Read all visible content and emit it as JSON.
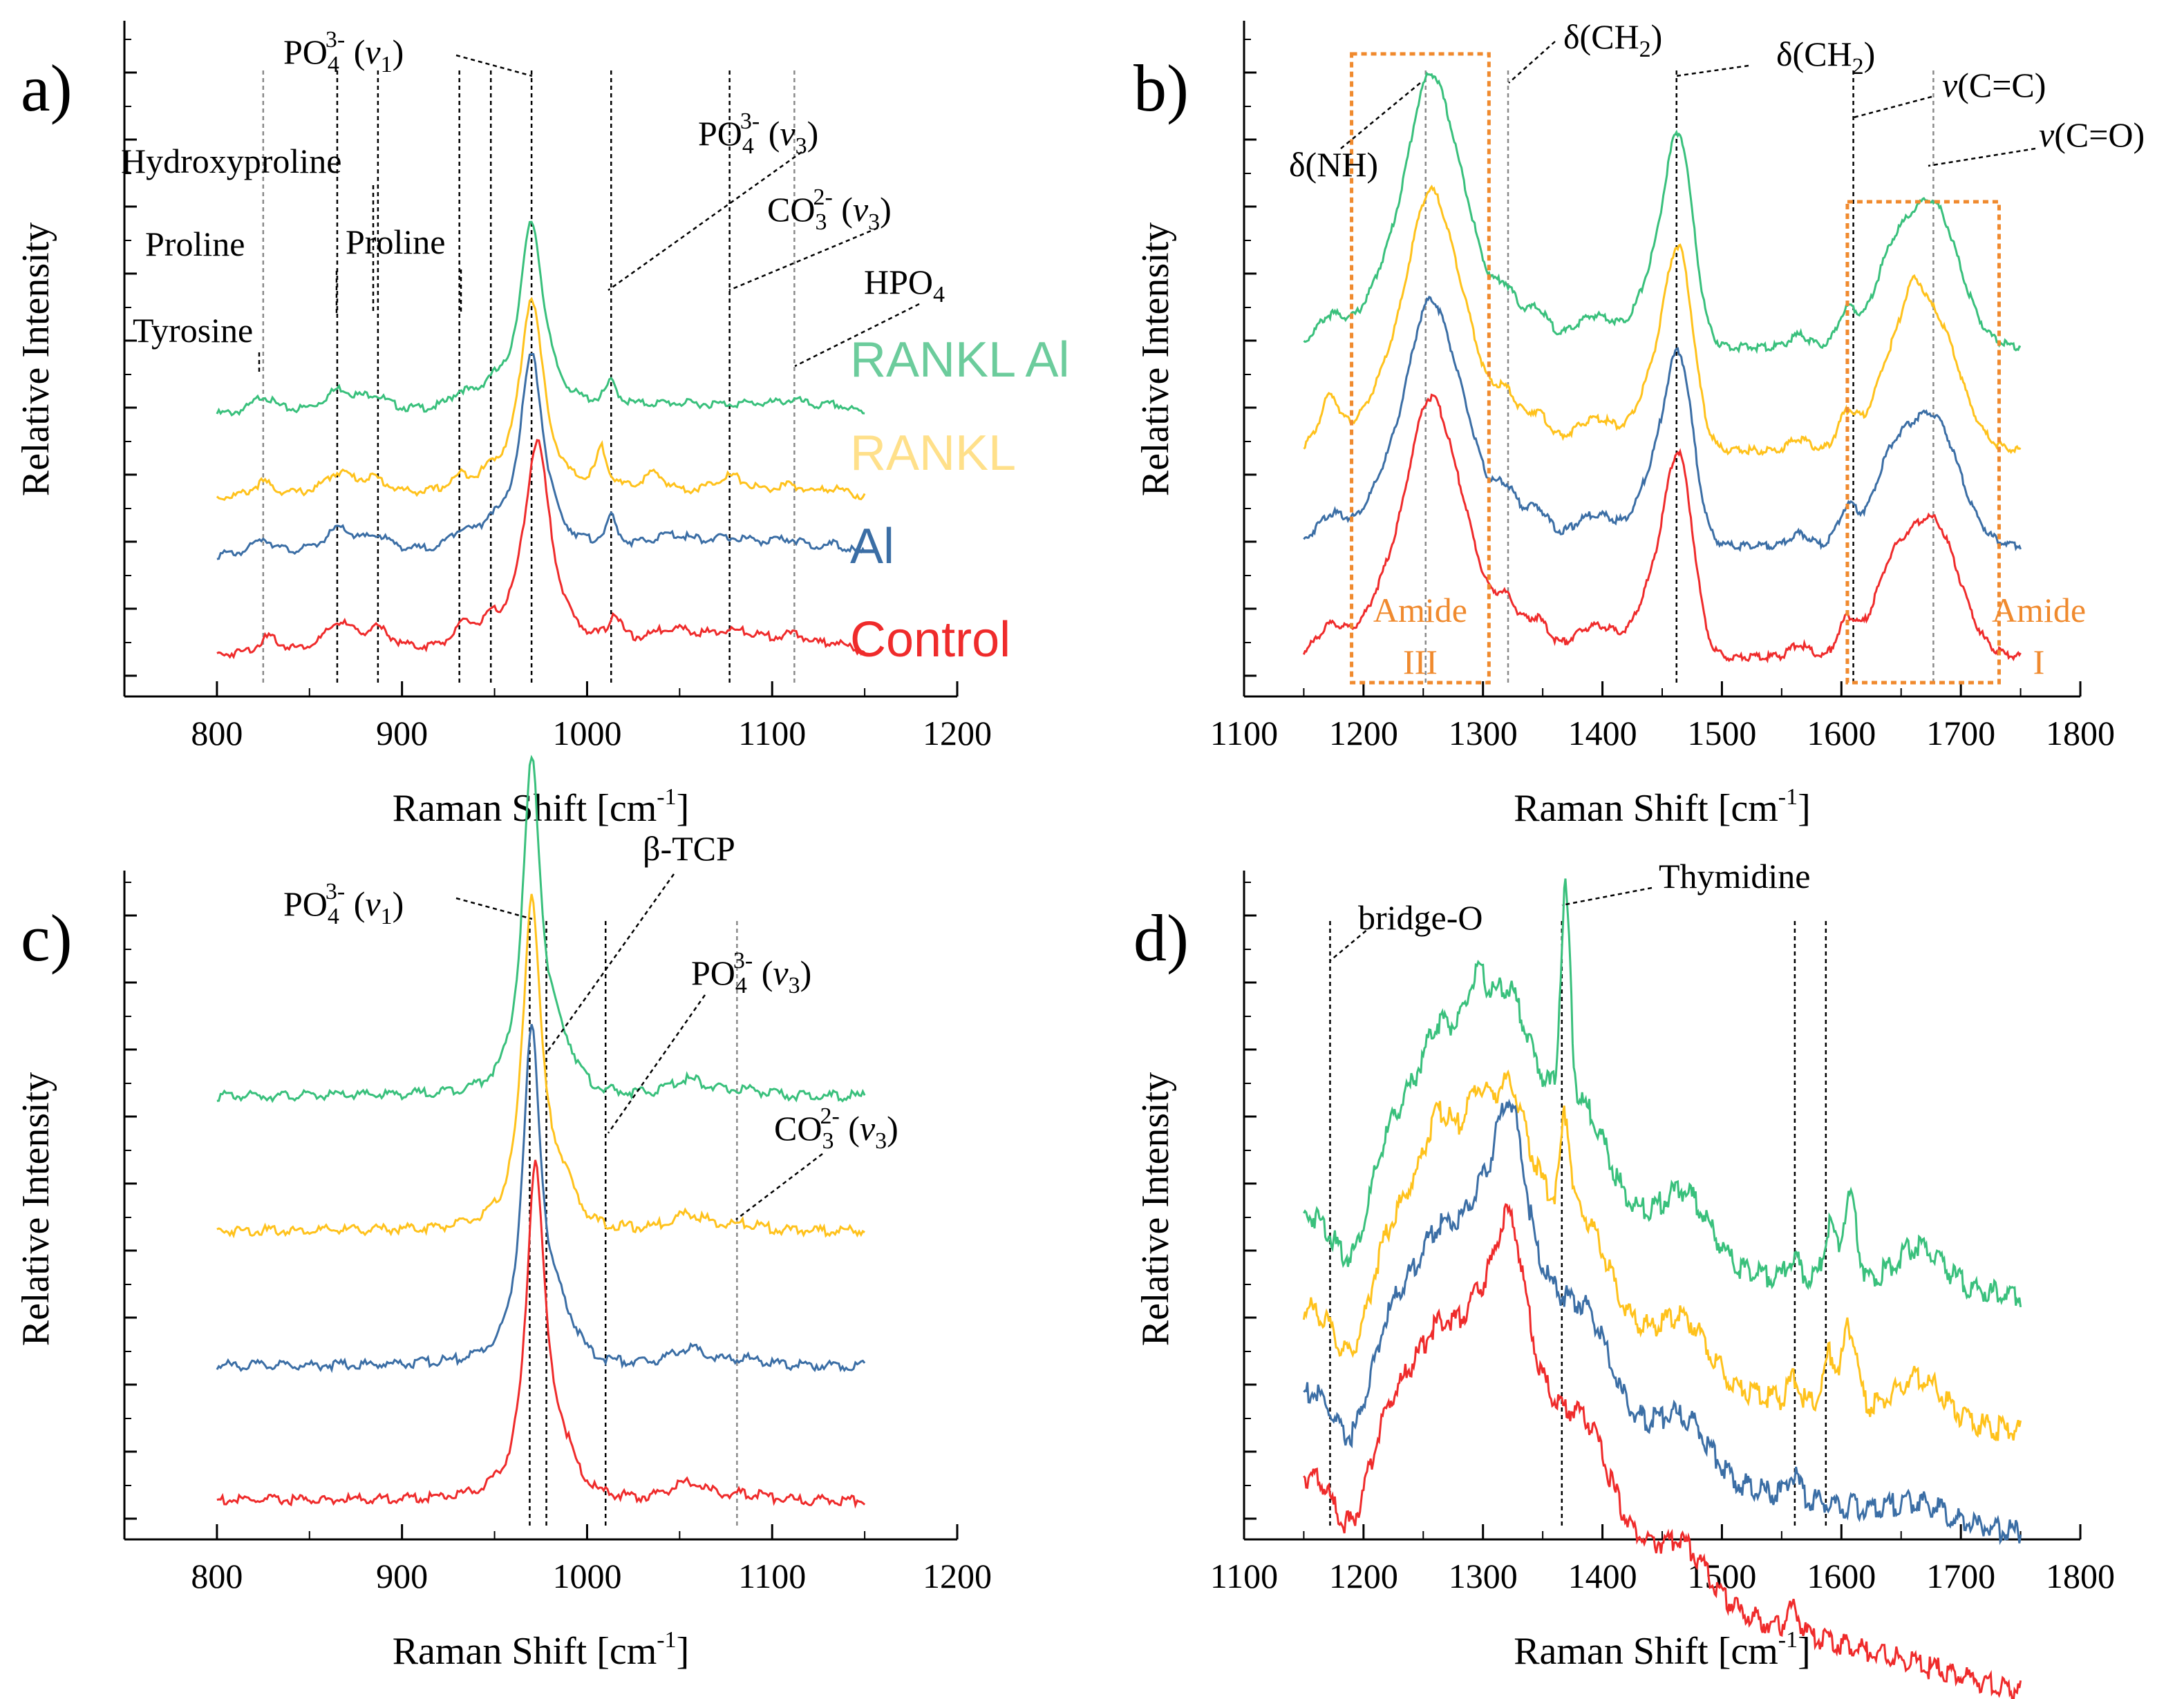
{
  "chart_data": [
    {
      "panel": "a)",
      "type": "line",
      "xlabel": "Raman Shift [cm⁻¹]",
      "ylabel": "Relative Intensity",
      "xlim": [
        750,
        1200
      ],
      "xticks": [
        "800",
        "900",
        "1000",
        "1100",
        "1200"
      ],
      "series": [
        {
          "name": "RANKL Al",
          "color": "#39c07c",
          "offset": 2.9,
          "peaks": [
            [
              825,
              0.22,
              7
            ],
            [
              866,
              0.28,
              10
            ],
            [
              885,
              0.18,
              9
            ],
            [
              932,
              0.18,
              7
            ],
            [
              948,
              0.2,
              6
            ],
            [
              970,
              2.3,
              8
            ],
            [
              1013,
              0.28,
              4
            ],
            [
              1045,
              0.1,
              30
            ],
            [
              1090,
              0.1,
              30
            ],
            [
              1112,
              0.1,
              10
            ],
            [
              1134,
              0.08,
              8
            ]
          ]
        },
        {
          "name": "RANKL",
          "color": "#ffc21c",
          "offset": 1.9,
          "peaks": [
            [
              825,
              0.18,
              7
            ],
            [
              866,
              0.28,
              10
            ],
            [
              885,
              0.18,
              9
            ],
            [
              932,
              0.18,
              7
            ],
            [
              948,
              0.15,
              6
            ],
            [
              970,
              2.4,
              8
            ],
            [
              1008,
              0.5,
              4
            ],
            [
              1036,
              0.25,
              8
            ],
            [
              1077,
              0.25,
              12
            ],
            [
              1110,
              0.12,
              10
            ],
            [
              1134,
              0.1,
              8
            ]
          ]
        },
        {
          "name": "Al",
          "color": "#3b6ea5",
          "offset": 1.2,
          "peaks": [
            [
              825,
              0.2,
              7
            ],
            [
              866,
              0.3,
              10
            ],
            [
              887,
              0.18,
              9
            ],
            [
              932,
              0.22,
              7
            ],
            [
              948,
              0.22,
              6
            ],
            [
              970,
              2.4,
              8
            ],
            [
              1013,
              0.35,
              4
            ],
            [
              1045,
              0.18,
              15
            ],
            [
              1080,
              0.18,
              25
            ],
            [
              1110,
              0.12,
              10
            ],
            [
              1134,
              0.1,
              8
            ]
          ]
        },
        {
          "name": "Control",
          "color": "#ef2b2b",
          "offset": 0.0,
          "peaks": [
            [
              828,
              0.2,
              7
            ],
            [
              866,
              0.35,
              10
            ],
            [
              887,
              0.25,
              9
            ],
            [
              934,
              0.25,
              7
            ],
            [
              948,
              0.18,
              6
            ],
            [
              973,
              2.55,
              9
            ],
            [
              1015,
              0.35,
              4
            ],
            [
              1045,
              0.22,
              15
            ],
            [
              1080,
              0.25,
              25
            ],
            [
              1112,
              0.15,
              10
            ],
            [
              1134,
              0.1,
              8
            ]
          ]
        }
      ],
      "legend": [
        "RANKL Al",
        "RANKL",
        "Al",
        "Control"
      ],
      "legend_colors": [
        "#6ccc9c",
        "#ffe08a",
        "#3b6ea5",
        "#ef2b2b"
      ],
      "peak_lines": [
        {
          "x": 825,
          "style": "gray"
        },
        {
          "x": 865,
          "style": "black"
        },
        {
          "x": 887,
          "style": "black"
        },
        {
          "x": 931,
          "style": "black"
        },
        {
          "x": 948,
          "style": "black"
        },
        {
          "x": 970,
          "style": "black"
        },
        {
          "x": 1013,
          "style": "black"
        },
        {
          "x": 1077,
          "style": "black"
        },
        {
          "x": 1112,
          "style": "gray"
        }
      ],
      "annotations": [
        {
          "main": "PO",
          "sub": "4",
          "sup": "3-",
          "tail": " (",
          "ital": "v",
          "sub2": "1",
          "end": ")"
        },
        {
          "main": "Hydroxyproline"
        },
        {
          "main": "Proline"
        },
        {
          "main": "Proline"
        },
        {
          "main": "Tyrosine"
        },
        {
          "main": "PO",
          "sub": "4",
          "sup": "3-",
          "tail": " (",
          "ital": "v",
          "sub2": "3",
          "end": ")"
        },
        {
          "main": "CO",
          "sub": "3",
          "sup": "2-",
          "tail": " (",
          "ital": "v",
          "sub2": "3",
          "end": ")"
        },
        {
          "main": "HPO",
          "sub": "4"
        }
      ]
    },
    {
      "panel": "b)",
      "type": "line",
      "xlabel": "Raman Shift [cm⁻¹]",
      "ylabel": "Relative Intensity",
      "xlim": [
        1100,
        1800
      ],
      "xticks": [
        "1100",
        "1200",
        "1300",
        "1400",
        "1500",
        "1600",
        "1700",
        "1800"
      ],
      "series": [
        {
          "name": "RANKL Al",
          "color": "#39c07c",
          "offset": 3.9
        },
        {
          "name": "RANKL",
          "color": "#ffc21c",
          "offset": 2.6
        },
        {
          "name": "Al",
          "color": "#3b6ea5",
          "offset": 1.4
        },
        {
          "name": "Control",
          "color": "#ef2b2b",
          "offset": 0.0
        }
      ],
      "peak_lines": [
        {
          "x": 1252,
          "style": "gray"
        },
        {
          "x": 1321,
          "style": "gray"
        },
        {
          "x": 1462,
          "style": "black"
        },
        {
          "x": 1610,
          "style": "black"
        },
        {
          "x": 1677,
          "style": "gray"
        }
      ],
      "boxes": [
        {
          "label1": "Amide",
          "label2": "III"
        },
        {
          "label1": "Amide",
          "label2": "I"
        }
      ],
      "annotations": [
        {
          "main": "δ(NH)"
        },
        {
          "main": "δ(CH",
          "sub": "2",
          "end": ")"
        },
        {
          "main": "δ(CH",
          "sub": "2",
          "end": ")"
        },
        {
          "ital": "v",
          "main": "(C=C)"
        },
        {
          "ital": "v",
          "main": "(C=O)"
        }
      ]
    },
    {
      "panel": "c)",
      "type": "line",
      "xlabel": "Raman Shift [cm⁻¹]",
      "ylabel": "Relative Intensity",
      "xlim": [
        750,
        1200
      ],
      "xticks": [
        "800",
        "900",
        "1000",
        "1100",
        "1200"
      ],
      "series": [
        {
          "name": "RANKL Al",
          "color": "#39c07c",
          "offset": 3.9
        },
        {
          "name": "RANKL",
          "color": "#ffc21c",
          "offset": 2.6
        },
        {
          "name": "Al",
          "color": "#3b6ea5",
          "offset": 1.3
        },
        {
          "name": "Control",
          "color": "#ef2b2b",
          "offset": 0.0
        }
      ],
      "peak_lines": [
        {
          "x": 969,
          "style": "black"
        },
        {
          "x": 978,
          "style": "black"
        },
        {
          "x": 1010,
          "style": "black"
        },
        {
          "x": 1081,
          "style": "gray"
        }
      ],
      "annotations": [
        {
          "main": "PO",
          "sub": "4",
          "sup": "3-",
          "tail": " (",
          "ital": "v",
          "sub2": "1",
          "end": ")"
        },
        {
          "main": "β-TCP"
        },
        {
          "main": "PO",
          "sub": "4",
          "sup": "3-",
          "tail": " (",
          "ital": "v",
          "sub2": "3",
          "end": ")"
        },
        {
          "main": "CO",
          "sub": "3",
          "sup": "2-",
          "tail": " (",
          "ital": "v",
          "sub2": "3",
          "end": ")"
        }
      ]
    },
    {
      "panel": "d)",
      "type": "line",
      "xlabel": "Raman Shift [cm⁻¹]",
      "ylabel": "Relative Intensity",
      "xlim": [
        1100,
        1800
      ],
      "xticks": [
        "1100",
        "1200",
        "1300",
        "1400",
        "1500",
        "1600",
        "1700",
        "1800"
      ],
      "series": [
        {
          "name": "RANKL Al",
          "color": "#39c07c",
          "offset": 2.5
        },
        {
          "name": "RANKL",
          "color": "#ffc21c",
          "offset": 1.6
        },
        {
          "name": "Al",
          "color": "#3b6ea5",
          "offset": 0.8
        },
        {
          "name": "Control",
          "color": "#ef2b2b",
          "offset": 0.0
        }
      ],
      "peak_lines": [
        {
          "x": 1172,
          "style": "black"
        },
        {
          "x": 1366,
          "style": "black"
        },
        {
          "x": 1561,
          "style": "black"
        },
        {
          "x": 1587,
          "style": "black"
        }
      ],
      "annotations": [
        {
          "main": "bridge-O"
        },
        {
          "main": "Thymidine"
        }
      ]
    }
  ]
}
